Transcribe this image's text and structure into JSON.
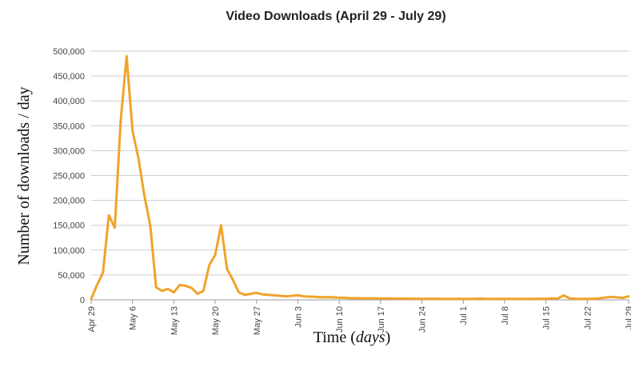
{
  "chart_data": {
    "type": "line",
    "title": "Video Downloads (April 29 - July 29)",
    "ylabel": "Number of downloads / day",
    "xlabel_main": "Time (",
    "xlabel_italic": "days",
    "xlabel_close": ")",
    "x": [
      0,
      1,
      2,
      3,
      4,
      5,
      6,
      7,
      8,
      9,
      10,
      11,
      12,
      13,
      14,
      15,
      16,
      17,
      18,
      19,
      20,
      21,
      22,
      23,
      24,
      25,
      26,
      27,
      28,
      29,
      30,
      31,
      32,
      33,
      34,
      35,
      36,
      37,
      38,
      39,
      40,
      41,
      42,
      43,
      44,
      45,
      46,
      47,
      48,
      49,
      50,
      51,
      52,
      53,
      54,
      55,
      56,
      57,
      58,
      59,
      60,
      61,
      62,
      63,
      64,
      65,
      66,
      67,
      68,
      69,
      70,
      71,
      72,
      73,
      74,
      75,
      76,
      77,
      78,
      79,
      80,
      81,
      82,
      83,
      84,
      85,
      86,
      87,
      88,
      89,
      90,
      91
    ],
    "series": [
      {
        "color": "#f0a32a",
        "values": [
          2000,
          30000,
          55000,
          170000,
          145000,
          360000,
          490000,
          340000,
          285000,
          210000,
          150000,
          25000,
          18000,
          22000,
          15000,
          30000,
          28000,
          24000,
          12000,
          18000,
          70000,
          90000,
          150000,
          62000,
          40000,
          15000,
          10000,
          12000,
          14000,
          11000,
          10000,
          9000,
          8000,
          7000,
          8000,
          9000,
          7000,
          6500,
          6000,
          5000,
          5500,
          5000,
          4500,
          4000,
          3500,
          3500,
          3000,
          3000,
          3000,
          2800,
          2800,
          2600,
          2500,
          2500,
          2400,
          2300,
          2300,
          2200,
          2200,
          2100,
          2100,
          2000,
          2000,
          2000,
          2000,
          2000,
          2500,
          2000,
          2000,
          2000,
          2000,
          2000,
          2000,
          2000,
          2000,
          2000,
          2500,
          2000,
          3000,
          2500,
          9000,
          3000,
          2000,
          2000,
          2000,
          2000,
          3000,
          4500,
          6000,
          5000,
          4000,
          7000
        ]
      }
    ],
    "xticks": [
      {
        "x": 0,
        "label": "Apr 29"
      },
      {
        "x": 7,
        "label": "May 6"
      },
      {
        "x": 14,
        "label": "May 13"
      },
      {
        "x": 21,
        "label": "May 20"
      },
      {
        "x": 28,
        "label": "May 27"
      },
      {
        "x": 35,
        "label": "Jun 3"
      },
      {
        "x": 42,
        "label": "Jun 10"
      },
      {
        "x": 49,
        "label": "Jun 17"
      },
      {
        "x": 56,
        "label": "Jun 24"
      },
      {
        "x": 63,
        "label": "Jul 1"
      },
      {
        "x": 70,
        "label": "Jul 8"
      },
      {
        "x": 77,
        "label": "Jul 15"
      },
      {
        "x": 84,
        "label": "Jul 22"
      },
      {
        "x": 91,
        "label": "Jul 29"
      }
    ],
    "yticks": [
      {
        "v": 0,
        "label": "0"
      },
      {
        "v": 50000,
        "label": "50,000"
      },
      {
        "v": 100000,
        "label": "100,000"
      },
      {
        "v": 150000,
        "label": "150,000"
      },
      {
        "v": 200000,
        "label": "200,000"
      },
      {
        "v": 250000,
        "label": "250,000"
      },
      {
        "v": 300000,
        "label": "300,000"
      },
      {
        "v": 350000,
        "label": "350,000"
      },
      {
        "v": 400000,
        "label": "400,000"
      },
      {
        "v": 450000,
        "label": "450,000"
      },
      {
        "v": 500000,
        "label": "500,000"
      }
    ],
    "xlim": [
      0,
      91
    ],
    "ylim": [
      0,
      500000
    ],
    "grid": true,
    "legend": "none"
  }
}
